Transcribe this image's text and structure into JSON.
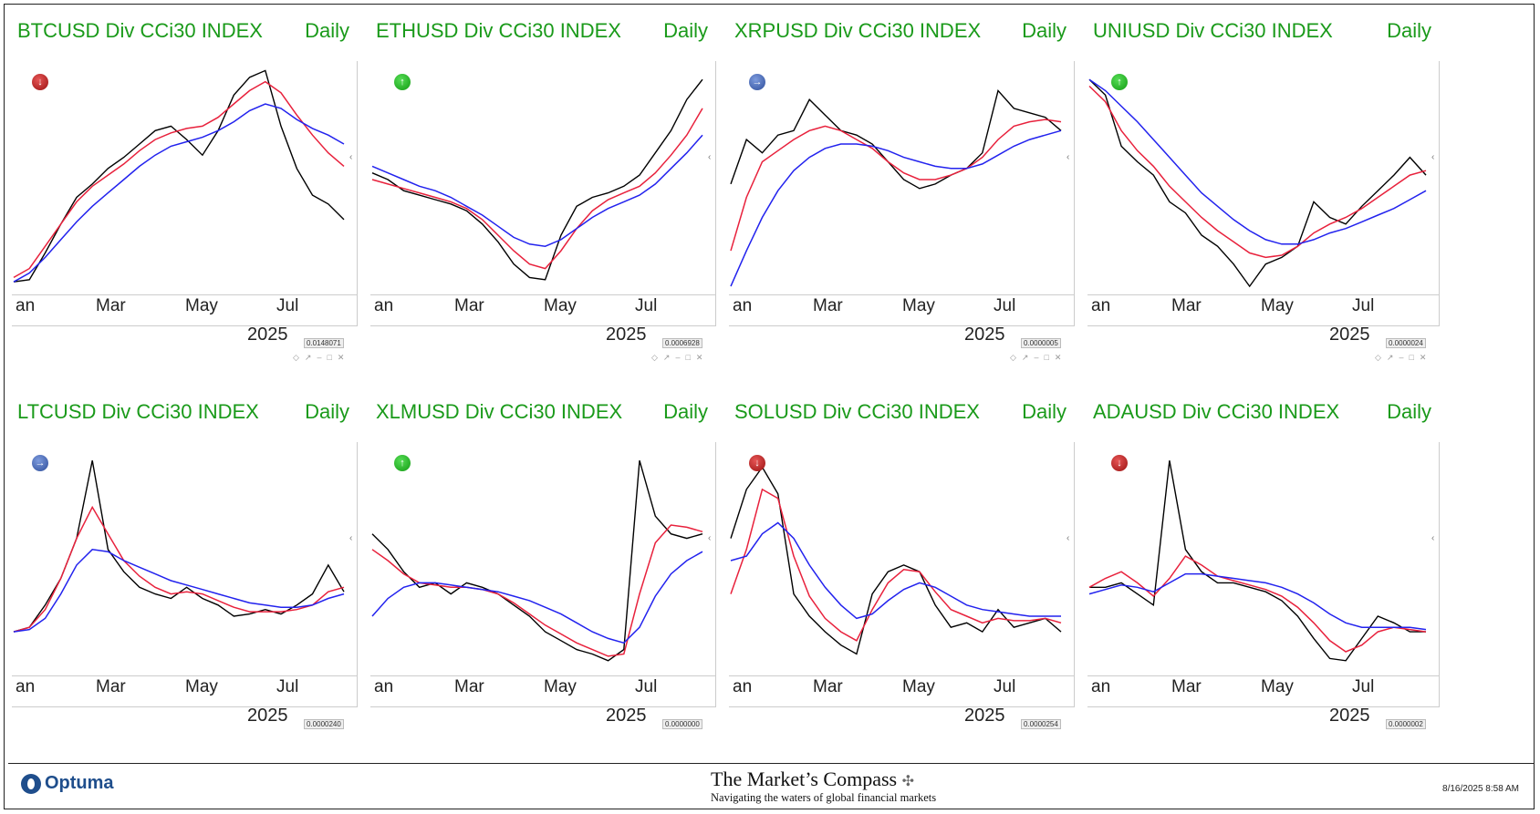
{
  "footer": {
    "brand": "Optuma",
    "title": "The Market’s Compass",
    "subtitle": "Navigating the waters of global financial markets",
    "timestamp": "8/16/2025 8:58 AM"
  },
  "chart_data": [
    {
      "type": "line",
      "title": "BTCUSD Div CCi30 INDEX",
      "period": "Daily",
      "signal": "down",
      "x_ticks": [
        "an",
        "Mar",
        "May",
        "Jul"
      ],
      "year": "2025",
      "last_value": "0.0148071",
      "series": [
        {
          "color": "#000000",
          "values": [
            0.04,
            0.05,
            0.17,
            0.3,
            0.42,
            0.48,
            0.55,
            0.6,
            0.66,
            0.72,
            0.74,
            0.68,
            0.61,
            0.72,
            0.88,
            0.96,
            0.99,
            0.74,
            0.55,
            0.43,
            0.39,
            0.32
          ]
        },
        {
          "color": "#e8213c",
          "values": [
            0.06,
            0.1,
            0.2,
            0.3,
            0.4,
            0.47,
            0.52,
            0.57,
            0.63,
            0.68,
            0.71,
            0.73,
            0.74,
            0.78,
            0.84,
            0.9,
            0.94,
            0.89,
            0.79,
            0.7,
            0.62,
            0.56
          ]
        },
        {
          "color": "#2222ee",
          "values": [
            0.04,
            0.08,
            0.15,
            0.23,
            0.31,
            0.38,
            0.44,
            0.5,
            0.56,
            0.61,
            0.65,
            0.67,
            0.69,
            0.72,
            0.76,
            0.81,
            0.84,
            0.82,
            0.77,
            0.73,
            0.7,
            0.66
          ]
        }
      ]
    },
    {
      "type": "line",
      "title": "ETHUSD Div CCi30 INDEX",
      "period": "Daily",
      "signal": "up",
      "x_ticks": [
        "an",
        "Mar",
        "May",
        "Jul"
      ],
      "year": "2025",
      "last_value": "0.0006928",
      "series": [
        {
          "color": "#000000",
          "values": [
            0.53,
            0.5,
            0.45,
            0.43,
            0.41,
            0.39,
            0.36,
            0.3,
            0.22,
            0.12,
            0.06,
            0.05,
            0.25,
            0.38,
            0.42,
            0.44,
            0.47,
            0.52,
            0.62,
            0.72,
            0.86,
            0.95
          ]
        },
        {
          "color": "#e8213c",
          "values": [
            0.5,
            0.48,
            0.46,
            0.44,
            0.42,
            0.4,
            0.37,
            0.32,
            0.25,
            0.18,
            0.12,
            0.1,
            0.18,
            0.28,
            0.36,
            0.41,
            0.44,
            0.47,
            0.53,
            0.61,
            0.7,
            0.82
          ]
        },
        {
          "color": "#2222ee",
          "values": [
            0.56,
            0.53,
            0.5,
            0.47,
            0.45,
            0.42,
            0.38,
            0.34,
            0.29,
            0.24,
            0.21,
            0.2,
            0.23,
            0.28,
            0.33,
            0.37,
            0.4,
            0.43,
            0.48,
            0.55,
            0.62,
            0.7
          ]
        }
      ]
    },
    {
      "type": "line",
      "title": "XRPUSD Div CCi30 INDEX",
      "period": "Daily",
      "signal": "right",
      "x_ticks": [
        "an",
        "Mar",
        "May",
        "Jul"
      ],
      "year": "2025",
      "last_value": "0.0000005",
      "series": [
        {
          "color": "#000000",
          "values": [
            0.48,
            0.68,
            0.62,
            0.7,
            0.72,
            0.86,
            0.79,
            0.72,
            0.7,
            0.66,
            0.58,
            0.5,
            0.46,
            0.48,
            0.52,
            0.55,
            0.62,
            0.9,
            0.82,
            0.8,
            0.78,
            0.72
          ]
        },
        {
          "color": "#e8213c",
          "values": [
            0.18,
            0.42,
            0.58,
            0.63,
            0.68,
            0.72,
            0.74,
            0.72,
            0.68,
            0.64,
            0.58,
            0.53,
            0.5,
            0.5,
            0.52,
            0.55,
            0.6,
            0.68,
            0.74,
            0.76,
            0.77,
            0.76
          ]
        },
        {
          "color": "#2222ee",
          "values": [
            0.02,
            0.18,
            0.33,
            0.45,
            0.54,
            0.6,
            0.64,
            0.66,
            0.66,
            0.65,
            0.63,
            0.6,
            0.58,
            0.56,
            0.55,
            0.55,
            0.57,
            0.61,
            0.65,
            0.68,
            0.7,
            0.72
          ]
        }
      ]
    },
    {
      "type": "line",
      "title": "UNIUSD Div CCi30 INDEX",
      "period": "Daily",
      "signal": "up",
      "x_ticks": [
        "an",
        "Mar",
        "May",
        "Jul"
      ],
      "year": "2025",
      "last_value": "0.0000024",
      "series": [
        {
          "color": "#000000",
          "values": [
            0.95,
            0.88,
            0.65,
            0.58,
            0.52,
            0.4,
            0.35,
            0.25,
            0.2,
            0.12,
            0.02,
            0.12,
            0.15,
            0.2,
            0.4,
            0.33,
            0.3,
            0.38,
            0.45,
            0.52,
            0.6,
            0.52
          ]
        },
        {
          "color": "#e8213c",
          "values": [
            0.92,
            0.85,
            0.72,
            0.63,
            0.56,
            0.47,
            0.4,
            0.33,
            0.27,
            0.22,
            0.17,
            0.15,
            0.16,
            0.2,
            0.26,
            0.3,
            0.33,
            0.37,
            0.42,
            0.47,
            0.52,
            0.54
          ]
        },
        {
          "color": "#2222ee",
          "values": [
            0.95,
            0.9,
            0.83,
            0.76,
            0.68,
            0.6,
            0.52,
            0.44,
            0.38,
            0.32,
            0.27,
            0.23,
            0.21,
            0.21,
            0.23,
            0.26,
            0.28,
            0.31,
            0.34,
            0.37,
            0.41,
            0.45
          ]
        }
      ]
    },
    {
      "type": "line",
      "title": "LTCUSD Div CCi30 INDEX",
      "period": "Daily",
      "signal": "right",
      "x_ticks": [
        "an",
        "Mar",
        "May",
        "Jul"
      ],
      "year": "2025",
      "last_value": "0.0000240",
      "series": [
        {
          "color": "#000000",
          "values": [
            0.18,
            0.2,
            0.3,
            0.42,
            0.6,
            0.95,
            0.55,
            0.45,
            0.38,
            0.35,
            0.33,
            0.38,
            0.33,
            0.3,
            0.25,
            0.26,
            0.28,
            0.26,
            0.3,
            0.35,
            0.48,
            0.36
          ]
        },
        {
          "color": "#e8213c",
          "values": [
            0.18,
            0.2,
            0.28,
            0.42,
            0.6,
            0.74,
            0.62,
            0.5,
            0.43,
            0.38,
            0.35,
            0.36,
            0.35,
            0.32,
            0.29,
            0.27,
            0.27,
            0.27,
            0.28,
            0.3,
            0.36,
            0.38
          ]
        },
        {
          "color": "#2222ee",
          "values": [
            0.18,
            0.19,
            0.24,
            0.35,
            0.48,
            0.55,
            0.54,
            0.5,
            0.47,
            0.44,
            0.41,
            0.39,
            0.37,
            0.35,
            0.33,
            0.31,
            0.3,
            0.29,
            0.29,
            0.3,
            0.33,
            0.35
          ]
        }
      ]
    },
    {
      "type": "line",
      "title": "XLMUSD Div CCi30 INDEX",
      "period": "Daily",
      "signal": "up",
      "x_ticks": [
        "an",
        "Mar",
        "May",
        "Jul"
      ],
      "year": "2025",
      "last_value": "0.0000000",
      "series": [
        {
          "color": "#000000",
          "values": [
            0.62,
            0.55,
            0.45,
            0.38,
            0.4,
            0.35,
            0.4,
            0.38,
            0.35,
            0.3,
            0.25,
            0.18,
            0.14,
            0.1,
            0.08,
            0.05,
            0.1,
            0.95,
            0.7,
            0.62,
            0.6,
            0.62
          ]
        },
        {
          "color": "#e8213c",
          "values": [
            0.55,
            0.5,
            0.44,
            0.4,
            0.39,
            0.38,
            0.38,
            0.37,
            0.35,
            0.31,
            0.26,
            0.21,
            0.17,
            0.13,
            0.1,
            0.07,
            0.08,
            0.35,
            0.58,
            0.66,
            0.65,
            0.63
          ]
        },
        {
          "color": "#2222ee",
          "values": [
            0.25,
            0.33,
            0.38,
            0.4,
            0.4,
            0.39,
            0.38,
            0.37,
            0.36,
            0.34,
            0.32,
            0.29,
            0.26,
            0.22,
            0.18,
            0.15,
            0.13,
            0.2,
            0.34,
            0.44,
            0.5,
            0.54
          ]
        }
      ]
    },
    {
      "type": "line",
      "title": "SOLUSD Div CCi30 INDEX",
      "period": "Daily",
      "signal": "down",
      "x_ticks": [
        "an",
        "Mar",
        "May",
        "Jul"
      ],
      "year": "2025",
      "last_value": "0.0000254",
      "series": [
        {
          "color": "#000000",
          "values": [
            0.6,
            0.82,
            0.92,
            0.8,
            0.35,
            0.25,
            0.18,
            0.12,
            0.08,
            0.35,
            0.45,
            0.48,
            0.45,
            0.3,
            0.2,
            0.22,
            0.18,
            0.28,
            0.2,
            0.22,
            0.24,
            0.18
          ]
        },
        {
          "color": "#e8213c",
          "values": [
            0.35,
            0.55,
            0.82,
            0.78,
            0.52,
            0.34,
            0.24,
            0.18,
            0.14,
            0.28,
            0.4,
            0.46,
            0.45,
            0.36,
            0.28,
            0.25,
            0.22,
            0.24,
            0.23,
            0.23,
            0.24,
            0.22
          ]
        },
        {
          "color": "#2222ee",
          "values": [
            0.5,
            0.52,
            0.62,
            0.67,
            0.6,
            0.48,
            0.38,
            0.3,
            0.24,
            0.26,
            0.32,
            0.37,
            0.4,
            0.38,
            0.34,
            0.3,
            0.28,
            0.27,
            0.26,
            0.25,
            0.25,
            0.25
          ]
        }
      ]
    },
    {
      "type": "line",
      "title": "ADAUSD Div CCi30 INDEX",
      "period": "Daily",
      "signal": "down",
      "x_ticks": [
        "an",
        "Mar",
        "May",
        "Jul"
      ],
      "year": "2025",
      "last_value": "0.0000002",
      "series": [
        {
          "color": "#000000",
          "values": [
            0.38,
            0.38,
            0.4,
            0.35,
            0.3,
            0.95,
            0.55,
            0.45,
            0.4,
            0.4,
            0.38,
            0.36,
            0.32,
            0.25,
            0.15,
            0.06,
            0.05,
            0.15,
            0.25,
            0.22,
            0.18,
            0.18
          ]
        },
        {
          "color": "#e8213c",
          "values": [
            0.38,
            0.42,
            0.45,
            0.4,
            0.34,
            0.42,
            0.52,
            0.48,
            0.43,
            0.41,
            0.39,
            0.37,
            0.34,
            0.29,
            0.22,
            0.14,
            0.09,
            0.12,
            0.18,
            0.2,
            0.19,
            0.18
          ]
        },
        {
          "color": "#2222ee",
          "values": [
            0.35,
            0.37,
            0.39,
            0.38,
            0.36,
            0.4,
            0.44,
            0.44,
            0.43,
            0.42,
            0.41,
            0.4,
            0.38,
            0.35,
            0.31,
            0.26,
            0.22,
            0.2,
            0.2,
            0.2,
            0.2,
            0.19
          ]
        }
      ]
    }
  ]
}
